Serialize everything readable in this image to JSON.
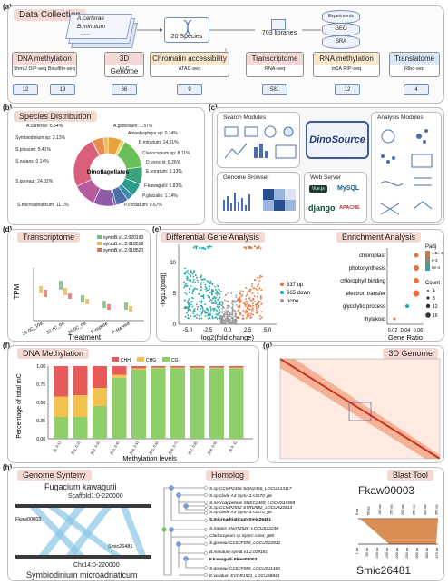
{
  "panel_a": {
    "label": "(a)",
    "title": "Data Collection",
    "species_list": [
      "A.carterae",
      "B.minutum",
      "......"
    ],
    "species_count": "20 Species",
    "libraries": "703 libraries",
    "sources": [
      "Experiments",
      "GEO",
      "SRA"
    ],
    "categories": [
      {
        "name": "DNA methylation",
        "sub": "5hmU DIP-seq  Bisulfite-seq",
        "counts": [
          "12",
          "19"
        ],
        "color": "#f3d9d6"
      },
      {
        "name": "3D Genome",
        "sub": "Hi-C",
        "counts": [
          "66"
        ],
        "color": "#f3d9d6"
      },
      {
        "name": "Chromatin accessibility",
        "sub": "ATAC-seq",
        "counts": [
          "9"
        ],
        "color": "#f7e7cf"
      },
      {
        "name": "Transcriptome",
        "sub": "RNA-seq",
        "counts": [
          "581"
        ],
        "color": "#f3d9d6"
      },
      {
        "name": "RNA methylation",
        "sub": "m1A RIP-seq",
        "counts": [
          "12"
        ],
        "color": "#f7e7cf"
      },
      {
        "name": "Translatome",
        "sub": "Ribo-seq",
        "counts": [
          "4"
        ],
        "color": "#d9e7f5"
      }
    ]
  },
  "panel_b": {
    "label": "(b)",
    "title": "Species Distribution",
    "center_label": "Dinoflagellates",
    "slices": [
      {
        "name": "A.carterae",
        "pct": 6.54,
        "color": "#e8a33d"
      },
      {
        "name": "A.gibbosum",
        "pct": 1.57,
        "color": "#f4d35e"
      },
      {
        "name": "Amoebophrya sp",
        "pct": 0.14,
        "color": "#a1c349"
      },
      {
        "name": "B.minutum",
        "pct": 14.51,
        "color": "#6bbf59"
      },
      {
        "name": "Cladocopium sp",
        "pct": 8.11,
        "color": "#3aa37a"
      },
      {
        "name": "D.trenchii",
        "pct": 6.26,
        "color": "#2a9d8f"
      },
      {
        "name": "E.voratum",
        "pct": 3.13,
        "color": "#3b8ea5"
      },
      {
        "name": "F.kawagutii",
        "pct": 5.83,
        "color": "#4f6fa8"
      },
      {
        "name": "P.glacialis",
        "pct": 1.14,
        "color": "#6a5fa8"
      },
      {
        "name": "P.cordatum",
        "pct": 9.67,
        "color": "#8e5ba8"
      },
      {
        "name": "S.microadriaticum",
        "pct": 11.1,
        "color": "#b65c9e"
      },
      {
        "name": "S.goreaui",
        "pct": 24.32,
        "color": "#d95f7a"
      },
      {
        "name": "S.natans",
        "pct": 0.14,
        "color": "#e36b58"
      },
      {
        "name": "S.pilosum",
        "pct": 5.41,
        "color": "#ec8a4f"
      },
      {
        "name": "Symbiodinium sp",
        "pct": 2.13,
        "color": "#f2b84b"
      }
    ],
    "texts": [
      "A.carterae: 6.54%",
      "A.gibbosum: 1.57%",
      "Amoebophrya sp: 0.14%",
      "B.minutum: 14.51%",
      "Cladocopium sp: 8.11%",
      "D.trenchii: 6.26%",
      "E.voratum: 3.13%",
      "F.kawagutii: 5.83%",
      "P.glacialis: 1.14%",
      "P.cordatum: 9.67%",
      "S.microadriaticum: 11.1%",
      "S.goreaui: 24.32%",
      "S.natans: 0.14%",
      "S.pilosum: 5.41%",
      "Symbiodinium sp: 2.13%"
    ]
  },
  "panel_c": {
    "label": "(c)",
    "center": "DinoSource",
    "search": "Search Modules",
    "analysis": "Analysis Modules",
    "browser": "Genome Browser",
    "web": "Web Server",
    "web_logos": [
      "Vue.js",
      "MySQL",
      "django",
      "APACHE"
    ]
  },
  "panel_d": {
    "label": "(d)",
    "title": "Transcriptome",
    "ylabel": "TPM",
    "xlabel": "Treatment",
    "legend": [
      "symbB.v1.2.020193",
      "symbB.v1.2.018519",
      "symbB.v1.2.018520"
    ],
    "legend_colors": [
      "#7ab87f",
      "#e7b84f",
      "#e06b5f"
    ],
    "categories": [
      "26.0C_10d",
      "32.4C_0d",
      "26.0C_0d",
      "P-replete",
      "P-starved"
    ]
  },
  "panel_e": {
    "label": "(e)",
    "title": "Differential Gene Analysis",
    "ylabel": "-log10(padj)",
    "xlabel": "log2(fold change)",
    "xticks": [
      "-5.0",
      "-2.5",
      "0.0",
      "2.5",
      "5.0"
    ],
    "yticks": [
      "0",
      "5",
      "10"
    ],
    "legend": [
      "337 up",
      "665 down",
      "none"
    ],
    "legend_colors": [
      "#e8703a",
      "#23a6a6",
      "#9a9a9a"
    ]
  },
  "panel_e2": {
    "title": "Enrichment Analysis",
    "xlabel": "Gene Ratio",
    "terms": [
      "chloroplast",
      "photosynthesis",
      "chlorophyll binding",
      "electron transfer",
      "glycolytic process",
      "thylakoid"
    ],
    "xticks": [
      "0.02",
      "0.04",
      "0.06"
    ],
    "padj_title": "Padj",
    "padj_ticks": [
      "1.5e-3",
      "e-3",
      "5e-4"
    ],
    "count_title": "Count",
    "count_ticks": [
      "4",
      "8",
      "12",
      "16"
    ]
  },
  "panel_f": {
    "label": "(f)",
    "title": "DNA Methylation",
    "ylabel": "Percentage of total mC",
    "xlabel": "Methylation levels",
    "legend": [
      "CHH",
      "CHG",
      "CG"
    ],
    "colors": [
      "#e85a5a",
      "#f2c14e",
      "#8fcf6a"
    ],
    "categories": [
      "[0, 0.1)",
      "[0.1, 0.2)",
      "[0.2, 0.3)",
      "[0.3, 0.4)",
      "[0.4, 0.5)",
      "[0.5, 0.6)",
      "[0.6, 0.7)",
      "[0.7, 0.8)",
      "[0.8, 0.9)",
      "[0.9, 1]"
    ],
    "yticks": [
      "0.00",
      "0.25",
      "0.50",
      "0.75",
      "1.00"
    ]
  },
  "panel_g": {
    "label": "(g)",
    "title": "3D Genome"
  },
  "panel_h": {
    "label": "(h)",
    "synteny_title": "Genome Synteny",
    "species1": "Fugacium kawagutii",
    "scaffold": "Scaffold1:0-220000",
    "gene1": "Fkaw00003",
    "gene2": "Smic26481",
    "chr": "Chr14:0-220000",
    "species2": "Symbiodinium microadriaticum",
    "homolog_title": "Homolog",
    "homologs": [
      "S.sp CCMP2456 SLIN2456_LOCUS13117",
      "S.sp clade A3 SymA3.s3170_g6",
      "S.necroappetens SNEC2469_LOCUS18558",
      "S.sp CCMP2592 STRI2592_LOCUS22813",
      "S.sp clade A3 SymA3.s3170_g6",
      "S.microadriaticum Smic26481",
      "S.natans SNAT2548_LOCUS22248",
      "Cladocopium sp SymC.s164_g60",
      "S.goreaui C1SCF055_LOCUS22832",
      "B.minutum symB.v1.2.019181",
      "F.kawagutii Fkaw00003",
      "S.goreaui C1SCF055_LOCUS11460",
      "E.voratum EVOR1521_LOCUS8843"
    ],
    "blast_title": "Blast Tool",
    "blast_top": "Fkaw00003",
    "blast_bottom": "Smic26481",
    "top_ticks": [
      "0 aa",
      "50 aa",
      "100 aa",
      "150 aa",
      "200 aa",
      "250 aa",
      "300 aa",
      "350 aa"
    ],
    "bottom_ticks": [
      "1 aa",
      "50 aa",
      "100 aa",
      "150 aa",
      "200 aa",
      "250 aa",
      "300 aa",
      "350 aa",
      "379 aa"
    ]
  }
}
